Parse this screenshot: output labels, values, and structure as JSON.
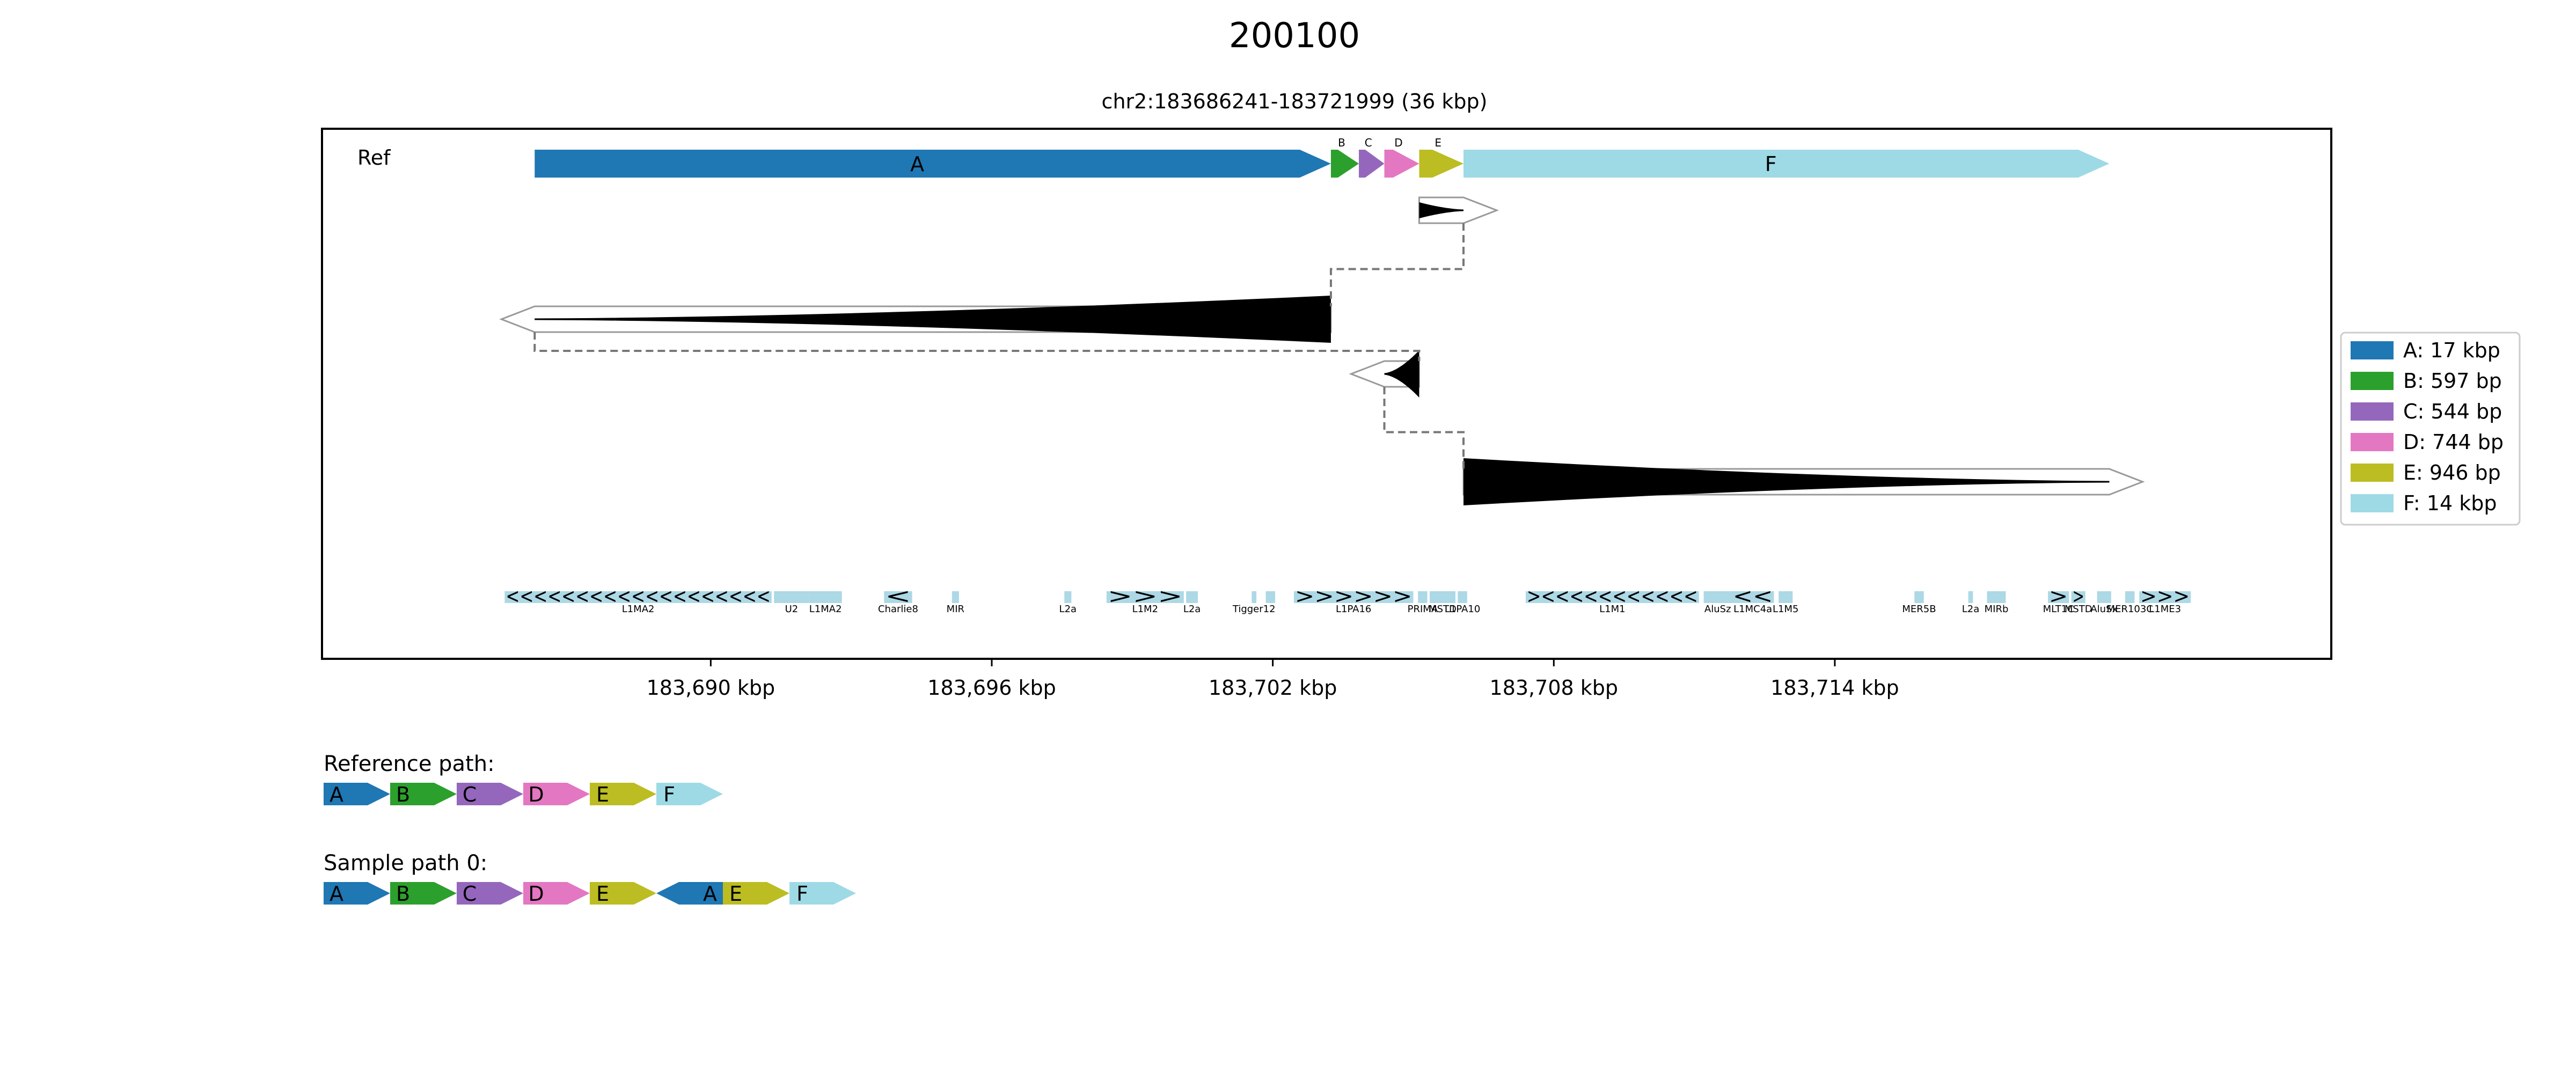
{
  "title": "200100",
  "subtitle": "chr2:183686241-183721999 (36 kbp)",
  "track_label": "Ref",
  "segments": [
    {
      "id": "A",
      "start": 183686241,
      "end": 183703241,
      "color": "#1f77b4",
      "legend": "A: 17 kbp"
    },
    {
      "id": "B",
      "start": 183703241,
      "end": 183703838,
      "color": "#2ca02c",
      "legend": "B: 597 bp"
    },
    {
      "id": "C",
      "start": 183703838,
      "end": 183704382,
      "color": "#9467bd",
      "legend": "C: 544 bp"
    },
    {
      "id": "D",
      "start": 183704382,
      "end": 183705126,
      "color": "#e377c2",
      "legend": "D: 744 bp"
    },
    {
      "id": "E",
      "start": 183705126,
      "end": 183706072,
      "color": "#bcbd22",
      "legend": "E: 946 bp"
    },
    {
      "id": "F",
      "start": 183706072,
      "end": 183719861,
      "color": "#9edae5",
      "legend": "F: 14 kbp"
    }
  ],
  "axis": {
    "xlim": [
      183681700,
      183724600
    ],
    "ticks": [
      183690000,
      183696000,
      183702000,
      183708000,
      183714000
    ],
    "tick_labels": [
      "183,690 kbp",
      "183,696 kbp",
      "183,702 kbp",
      "183,708 kbp",
      "183,714 kbp"
    ]
  },
  "alignments": [
    {
      "start": 183705126,
      "end": 183706072,
      "strand": "+"
    },
    {
      "start": 183686241,
      "end": 183703241,
      "strand": "-"
    },
    {
      "start": 183704382,
      "end": 183705126,
      "strand": "-"
    },
    {
      "start": 183706072,
      "end": 183719861,
      "strand": "+"
    }
  ],
  "repeats": [
    {
      "start": 183685600,
      "end": 183691300,
      "label": "L1MA2",
      "glyphs": "<<<<<<<<<<<<<<<<<<<"
    },
    {
      "start": 183691350,
      "end": 183692100,
      "label": "U2",
      "glyphs": ""
    },
    {
      "start": 183692100,
      "end": 183692800,
      "label": "L1MA2",
      "glyphs": ""
    },
    {
      "start": 183693700,
      "end": 183694300,
      "label": "Charlie8",
      "glyphs": "<"
    },
    {
      "start": 183695150,
      "end": 183695300,
      "label": "MIR",
      "glyphs": ""
    },
    {
      "start": 183697550,
      "end": 183697700,
      "label": "L2a",
      "glyphs": ""
    },
    {
      "start": 183698450,
      "end": 183700100,
      "label": "L1M2",
      "glyphs": ">>>"
    },
    {
      "start": 183700150,
      "end": 183700400,
      "label": "L2a",
      "glyphs": ""
    },
    {
      "start": 183701550,
      "end": 183701650,
      "label": "Tigger12",
      "glyphs": ""
    },
    {
      "start": 183701850,
      "end": 183702050,
      "label": "",
      "glyphs": ""
    },
    {
      "start": 183702450,
      "end": 183705000,
      "label": "L1PA16",
      "glyphs": ">>>>>>"
    },
    {
      "start": 183705100,
      "end": 183705300,
      "label": "PRIMA",
      "glyphs": ""
    },
    {
      "start": 183705350,
      "end": 183705900,
      "label": "MSTD",
      "glyphs": ""
    },
    {
      "start": 183705950,
      "end": 183706150,
      "label": "L1PA10",
      "glyphs": ""
    },
    {
      "start": 183707400,
      "end": 183711100,
      "label": "L1M1",
      "glyphs": "><<<<<<<<<<<"
    },
    {
      "start": 183711200,
      "end": 183711800,
      "label": "AluSz",
      "glyphs": ""
    },
    {
      "start": 183711800,
      "end": 183712700,
      "label": "L1MC4a",
      "glyphs": "<<"
    },
    {
      "start": 183712800,
      "end": 183713100,
      "label": "L1M5",
      "glyphs": ""
    },
    {
      "start": 183715700,
      "end": 183715900,
      "label": "MER5B",
      "glyphs": ""
    },
    {
      "start": 183716850,
      "end": 183716950,
      "label": "L2a",
      "glyphs": ""
    },
    {
      "start": 183717250,
      "end": 183717650,
      "label": "MIRb",
      "glyphs": ""
    },
    {
      "start": 183718550,
      "end": 183719000,
      "label": "MLT1C",
      "glyphs": ">"
    },
    {
      "start": 183719050,
      "end": 183719350,
      "label": "MSTD",
      "glyphs": ">"
    },
    {
      "start": 183719600,
      "end": 183719900,
      "label": "AluSx",
      "glyphs": ""
    },
    {
      "start": 183720200,
      "end": 183720400,
      "label": "MER103C",
      "glyphs": ""
    },
    {
      "start": 183720500,
      "end": 183721600,
      "label": "L1ME3",
      "glyphs": ">>>"
    }
  ],
  "reference_path": {
    "title": "Reference path:",
    "items": [
      {
        "id": "A",
        "strand": "+"
      },
      {
        "id": "B",
        "strand": "+"
      },
      {
        "id": "C",
        "strand": "+"
      },
      {
        "id": "D",
        "strand": "+"
      },
      {
        "id": "E",
        "strand": "+"
      },
      {
        "id": "F",
        "strand": "+"
      }
    ]
  },
  "sample_path": {
    "title": "Sample path 0:",
    "items": [
      {
        "id": "A",
        "strand": "+"
      },
      {
        "id": "B",
        "strand": "+"
      },
      {
        "id": "C",
        "strand": "+"
      },
      {
        "id": "D",
        "strand": "+"
      },
      {
        "id": "E",
        "strand": "+"
      },
      {
        "id": "A",
        "strand": "-"
      },
      {
        "id": "E",
        "strand": "+"
      },
      {
        "id": "F",
        "strand": "+"
      }
    ]
  }
}
